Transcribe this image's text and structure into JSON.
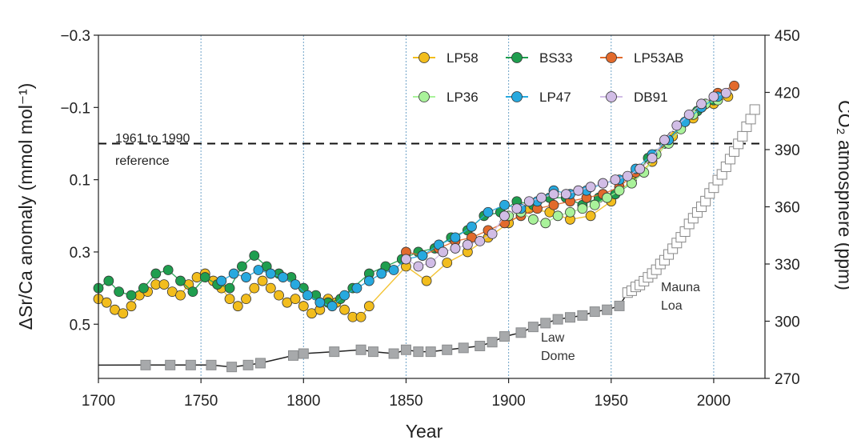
{
  "chart_data": {
    "type": "scatter",
    "xlabel": "Year",
    "ylabel_left": "ΔSr/Ca anomaly (mmol mol⁻¹)",
    "ylabel_right": "CO₂ atmosphere (ppm)",
    "xlim": [
      1700,
      2025
    ],
    "ylim_left": [
      0.65,
      -0.3
    ],
    "ylim_right": [
      270,
      450
    ],
    "x_ticks": [
      "1700",
      "1750",
      "1800",
      "1850",
      "1900",
      "1950",
      "2000"
    ],
    "x_tick_values": [
      1700,
      1750,
      1800,
      1850,
      1900,
      1950,
      2000
    ],
    "y_left_ticks": [
      "−0.3",
      "−0.1",
      "0.1",
      "0.3",
      "0.5"
    ],
    "y_left_tick_values": [
      -0.3,
      -0.1,
      0.1,
      0.3,
      0.5
    ],
    "y_right_ticks": [
      "450",
      "420",
      "390",
      "360",
      "330",
      "300",
      "270"
    ],
    "y_right_tick_values": [
      450,
      420,
      390,
      360,
      330,
      300,
      270
    ],
    "vgrid": [
      1750,
      1800,
      1850,
      1900,
      1950,
      2000
    ],
    "reference": {
      "value": 0.0,
      "label1": "1961 to 1990",
      "label2": "reference"
    },
    "annotations": {
      "law_dome_1": "Law",
      "law_dome_2": "Dome",
      "mauna_loa_1": "Mauna",
      "mauna_loa_2": "Loa"
    },
    "colors": {
      "LP58": "#f2bd1d",
      "BS33": "#1f9e4f",
      "LP53AB": "#e26a2c",
      "LP36": "#a9f29a",
      "LP47": "#27a9df",
      "DB91": "#d1bde6",
      "co2": "#a7a9ab",
      "co2_line": "#222222",
      "grid": "#6fa3c8"
    },
    "series": [
      {
        "name": "LP58",
        "points": [
          [
            1700,
            0.43
          ],
          [
            1704,
            0.44
          ],
          [
            1708,
            0.46
          ],
          [
            1712,
            0.47
          ],
          [
            1716,
            0.45
          ],
          [
            1720,
            0.42
          ],
          [
            1724,
            0.41
          ],
          [
            1728,
            0.39
          ],
          [
            1732,
            0.39
          ],
          [
            1736,
            0.41
          ],
          [
            1740,
            0.42
          ],
          [
            1744,
            0.39
          ],
          [
            1748,
            0.37
          ],
          [
            1752,
            0.36
          ],
          [
            1756,
            0.38
          ],
          [
            1760,
            0.4
          ],
          [
            1764,
            0.43
          ],
          [
            1768,
            0.45
          ],
          [
            1772,
            0.43
          ],
          [
            1776,
            0.4
          ],
          [
            1780,
            0.38
          ],
          [
            1784,
            0.4
          ],
          [
            1788,
            0.42
          ],
          [
            1792,
            0.44
          ],
          [
            1796,
            0.43
          ],
          [
            1800,
            0.45
          ],
          [
            1804,
            0.47
          ],
          [
            1808,
            0.46
          ],
          [
            1812,
            0.43
          ],
          [
            1816,
            0.44
          ],
          [
            1820,
            0.46
          ],
          [
            1824,
            0.48
          ],
          [
            1828,
            0.48
          ],
          [
            1832,
            0.45
          ],
          [
            1850,
            0.34
          ],
          [
            1860,
            0.38
          ],
          [
            1870,
            0.33
          ],
          [
            1880,
            0.3
          ],
          [
            1890,
            0.26
          ],
          [
            1900,
            0.22
          ],
          [
            1910,
            0.18
          ],
          [
            1920,
            0.19
          ],
          [
            1930,
            0.21
          ],
          [
            1940,
            0.2
          ],
          [
            1950,
            0.16
          ],
          [
            1960,
            0.1
          ],
          [
            1970,
            0.05
          ],
          [
            1980,
            -0.02
          ],
          [
            1990,
            -0.07
          ],
          [
            2000,
            -0.11
          ],
          [
            2007,
            -0.13
          ]
        ]
      },
      {
        "name": "BS33",
        "points": [
          [
            1700,
            0.4
          ],
          [
            1705,
            0.38
          ],
          [
            1710,
            0.41
          ],
          [
            1716,
            0.42
          ],
          [
            1722,
            0.4
          ],
          [
            1728,
            0.36
          ],
          [
            1734,
            0.35
          ],
          [
            1740,
            0.38
          ],
          [
            1746,
            0.41
          ],
          [
            1752,
            0.37
          ],
          [
            1758,
            0.39
          ],
          [
            1764,
            0.4
          ],
          [
            1770,
            0.34
          ],
          [
            1776,
            0.31
          ],
          [
            1782,
            0.34
          ],
          [
            1788,
            0.36
          ],
          [
            1794,
            0.37
          ],
          [
            1800,
            0.4
          ],
          [
            1806,
            0.42
          ],
          [
            1812,
            0.44
          ],
          [
            1818,
            0.43
          ],
          [
            1824,
            0.4
          ],
          [
            1832,
            0.36
          ],
          [
            1840,
            0.34
          ],
          [
            1848,
            0.32
          ],
          [
            1856,
            0.3
          ],
          [
            1864,
            0.29
          ],
          [
            1872,
            0.26
          ],
          [
            1880,
            0.24
          ],
          [
            1888,
            0.2
          ],
          [
            1896,
            0.19
          ],
          [
            1904,
            0.16
          ],
          [
            1912,
            0.17
          ],
          [
            1920,
            0.15
          ],
          [
            1928,
            0.15
          ],
          [
            1936,
            0.17
          ],
          [
            1944,
            0.15
          ],
          [
            1952,
            0.14
          ],
          [
            1960,
            0.11
          ],
          [
            1968,
            0.04
          ],
          [
            1976,
            0.0
          ],
          [
            1984,
            -0.05
          ],
          [
            1992,
            -0.09
          ],
          [
            2000,
            -0.12
          ]
        ]
      },
      {
        "name": "LP53AB",
        "points": [
          [
            1850,
            0.3
          ],
          [
            1858,
            0.31
          ],
          [
            1866,
            0.29
          ],
          [
            1874,
            0.27
          ],
          [
            1882,
            0.26
          ],
          [
            1890,
            0.24
          ],
          [
            1898,
            0.22
          ],
          [
            1906,
            0.2
          ],
          [
            1914,
            0.18
          ],
          [
            1922,
            0.17
          ],
          [
            1930,
            0.16
          ],
          [
            1938,
            0.15
          ],
          [
            1946,
            0.14
          ],
          [
            1954,
            0.12
          ],
          [
            1962,
            0.08
          ],
          [
            1970,
            0.04
          ],
          [
            1978,
            -0.01
          ],
          [
            1986,
            -0.06
          ],
          [
            1994,
            -0.1
          ],
          [
            2002,
            -0.14
          ],
          [
            2010,
            -0.16
          ]
        ]
      },
      {
        "name": "LP36",
        "points": [
          [
            1900,
            0.2
          ],
          [
            1906,
            0.19
          ],
          [
            1912,
            0.21
          ],
          [
            1918,
            0.22
          ],
          [
            1924,
            0.2
          ],
          [
            1930,
            0.19
          ],
          [
            1936,
            0.18
          ],
          [
            1942,
            0.17
          ],
          [
            1948,
            0.15
          ],
          [
            1954,
            0.13
          ],
          [
            1960,
            0.11
          ],
          [
            1966,
            0.08
          ],
          [
            1972,
            0.03
          ],
          [
            1978,
            0.0
          ],
          [
            1984,
            -0.04
          ],
          [
            1990,
            -0.08
          ],
          [
            1996,
            -0.11
          ],
          [
            2002,
            -0.12
          ]
        ]
      },
      {
        "name": "LP47",
        "points": [
          [
            1760,
            0.38
          ],
          [
            1766,
            0.36
          ],
          [
            1772,
            0.37
          ],
          [
            1778,
            0.35
          ],
          [
            1784,
            0.36
          ],
          [
            1790,
            0.37
          ],
          [
            1796,
            0.39
          ],
          [
            1802,
            0.42
          ],
          [
            1808,
            0.44
          ],
          [
            1814,
            0.45
          ],
          [
            1820,
            0.42
          ],
          [
            1826,
            0.4
          ],
          [
            1832,
            0.38
          ],
          [
            1838,
            0.36
          ],
          [
            1844,
            0.35
          ],
          [
            1850,
            0.32
          ],
          [
            1858,
            0.31
          ],
          [
            1866,
            0.28
          ],
          [
            1874,
            0.26
          ],
          [
            1882,
            0.23
          ],
          [
            1890,
            0.19
          ],
          [
            1898,
            0.17
          ],
          [
            1906,
            0.18
          ],
          [
            1914,
            0.16
          ],
          [
            1922,
            0.13
          ],
          [
            1930,
            0.14
          ],
          [
            1938,
            0.13
          ],
          [
            1946,
            0.11
          ],
          [
            1954,
            0.1
          ],
          [
            1962,
            0.07
          ],
          [
            1970,
            0.03
          ],
          [
            1978,
            -0.01
          ],
          [
            1986,
            -0.06
          ],
          [
            1994,
            -0.1
          ],
          [
            2002,
            -0.13
          ]
        ]
      },
      {
        "name": "DB91",
        "points": [
          [
            1850,
            0.32
          ],
          [
            1856,
            0.34
          ],
          [
            1862,
            0.33
          ],
          [
            1868,
            0.3
          ],
          [
            1874,
            0.29
          ],
          [
            1880,
            0.28
          ],
          [
            1886,
            0.27
          ],
          [
            1892,
            0.25
          ],
          [
            1898,
            0.2
          ],
          [
            1904,
            0.18
          ],
          [
            1910,
            0.16
          ],
          [
            1916,
            0.15
          ],
          [
            1922,
            0.14
          ],
          [
            1928,
            0.14
          ],
          [
            1934,
            0.13
          ],
          [
            1940,
            0.12
          ],
          [
            1946,
            0.11
          ],
          [
            1952,
            0.1
          ],
          [
            1958,
            0.09
          ],
          [
            1964,
            0.07
          ],
          [
            1970,
            0.04
          ],
          [
            1976,
            -0.01
          ],
          [
            1982,
            -0.05
          ],
          [
            1988,
            -0.08
          ],
          [
            1994,
            -0.11
          ],
          [
            2000,
            -0.13
          ],
          [
            2006,
            -0.14
          ]
        ]
      }
    ],
    "co2_series": {
      "name": "CO2",
      "points": [
        [
          1723,
          277
        ],
        [
          1735,
          277
        ],
        [
          1745,
          277
        ],
        [
          1755,
          277
        ],
        [
          1765,
          276
        ],
        [
          1773,
          277
        ],
        [
          1779,
          278
        ],
        [
          1795,
          282
        ],
        [
          1800,
          283
        ],
        [
          1815,
          284
        ],
        [
          1828,
          285
        ],
        [
          1834,
          284
        ],
        [
          1844,
          283
        ],
        [
          1850,
          285
        ],
        [
          1856,
          284
        ],
        [
          1862,
          284
        ],
        [
          1870,
          285
        ],
        [
          1878,
          286
        ],
        [
          1886,
          287
        ],
        [
          1892,
          289
        ],
        [
          1898,
          292
        ],
        [
          1906,
          294
        ],
        [
          1912,
          297
        ],
        [
          1918,
          299
        ],
        [
          1924,
          301
        ],
        [
          1930,
          302
        ],
        [
          1936,
          303
        ],
        [
          1942,
          305
        ],
        [
          1948,
          306
        ],
        [
          1954,
          308
        ],
        [
          1958,
          315
        ],
        [
          1960,
          316
        ],
        [
          1962,
          318
        ],
        [
          1964,
          319
        ],
        [
          1966,
          321
        ],
        [
          1968,
          323
        ],
        [
          1970,
          325
        ],
        [
          1972,
          327
        ],
        [
          1974,
          330
        ],
        [
          1976,
          332
        ],
        [
          1978,
          335
        ],
        [
          1980,
          338
        ],
        [
          1982,
          341
        ],
        [
          1984,
          344
        ],
        [
          1986,
          347
        ],
        [
          1988,
          351
        ],
        [
          1990,
          354
        ],
        [
          1992,
          357
        ],
        [
          1994,
          360
        ],
        [
          1996,
          363
        ],
        [
          1998,
          367
        ],
        [
          2000,
          370
        ],
        [
          2002,
          374
        ],
        [
          2004,
          377
        ],
        [
          2006,
          381
        ],
        [
          2008,
          385
        ],
        [
          2010,
          389
        ],
        [
          2012,
          393
        ],
        [
          2014,
          397
        ],
        [
          2016,
          402
        ],
        [
          2018,
          406
        ],
        [
          2020,
          411
        ]
      ],
      "open_after": 1957
    },
    "legend": [
      {
        "name": "LP58",
        "label": "LP58"
      },
      {
        "name": "BS33",
        "label": "BS33"
      },
      {
        "name": "LP53AB",
        "label": "LP53AB"
      },
      {
        "name": "LP36",
        "label": "LP36"
      },
      {
        "name": "LP47",
        "label": "LP47"
      },
      {
        "name": "DB91",
        "label": "DB91"
      }
    ]
  }
}
